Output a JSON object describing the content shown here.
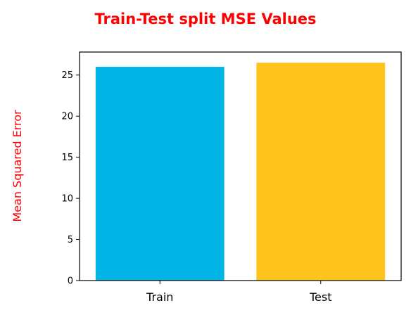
{
  "chart_data": {
    "type": "bar",
    "title": "Train-Test split MSE Values",
    "xlabel": "",
    "ylabel": "Mean Squared Error",
    "categories": [
      "Train",
      "Test"
    ],
    "values": [
      26.0,
      26.5
    ],
    "bar_colors": [
      "#00b4e6",
      "#ffc31e"
    ],
    "title_color": "#ff0000",
    "ylabel_color": "#ff0000",
    "ylim": [
      0,
      27.8
    ],
    "yticks": [
      0,
      5,
      10,
      15,
      20,
      25
    ],
    "ytick_labels": [
      "0",
      "5",
      "10",
      "15",
      "20",
      "25"
    ],
    "grid": false,
    "legend": "none"
  }
}
